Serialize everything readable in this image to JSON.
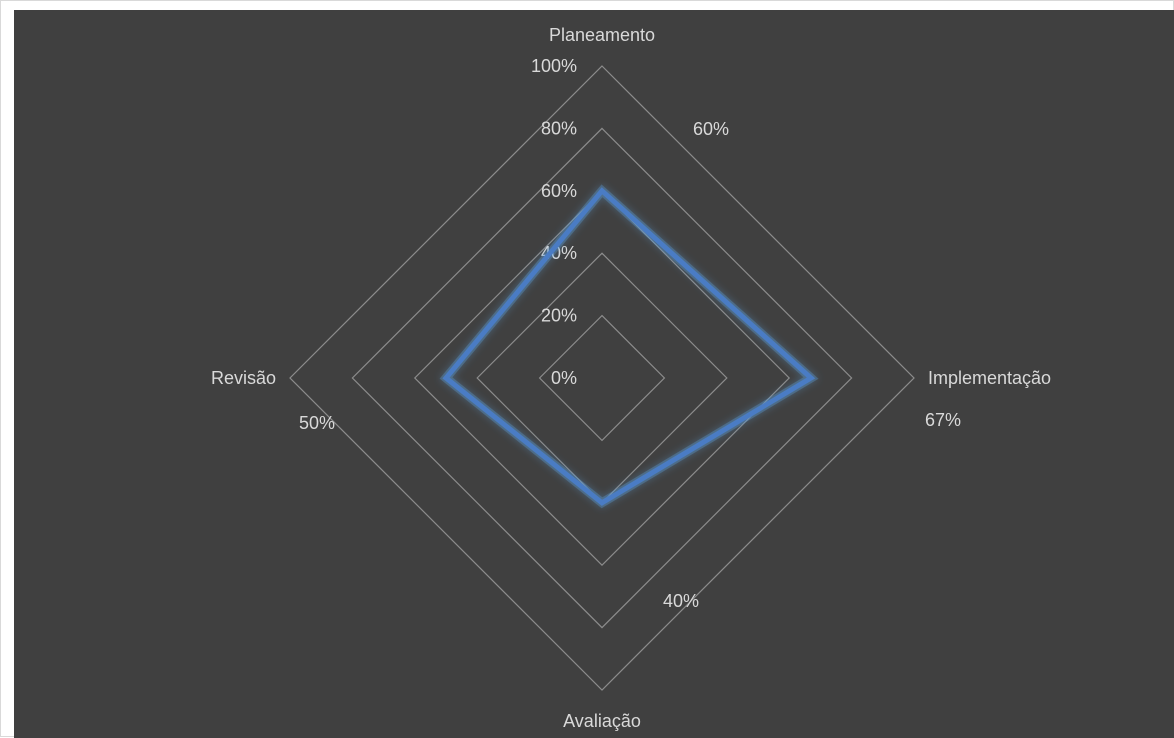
{
  "chart_data": {
    "type": "radar",
    "categories": [
      "Planeamento",
      "Implementação",
      "Avaliação",
      "Revisão"
    ],
    "series": [
      {
        "values": [
          0.6,
          0.67,
          0.4,
          0.5
        ]
      }
    ],
    "data_labels": [
      "60%",
      "67%",
      "40%",
      "50%"
    ],
    "r_ticks": [
      "0%",
      "20%",
      "40%",
      "60%",
      "80%",
      "100%"
    ],
    "rlim": [
      0,
      1
    ],
    "grid": true,
    "legend": "none",
    "colors": {
      "background": "#404040",
      "gridline": "#8c8c8c",
      "text": "#d9d9d9",
      "series": "#4a7cc4",
      "glow": "#5b9bd5"
    }
  }
}
